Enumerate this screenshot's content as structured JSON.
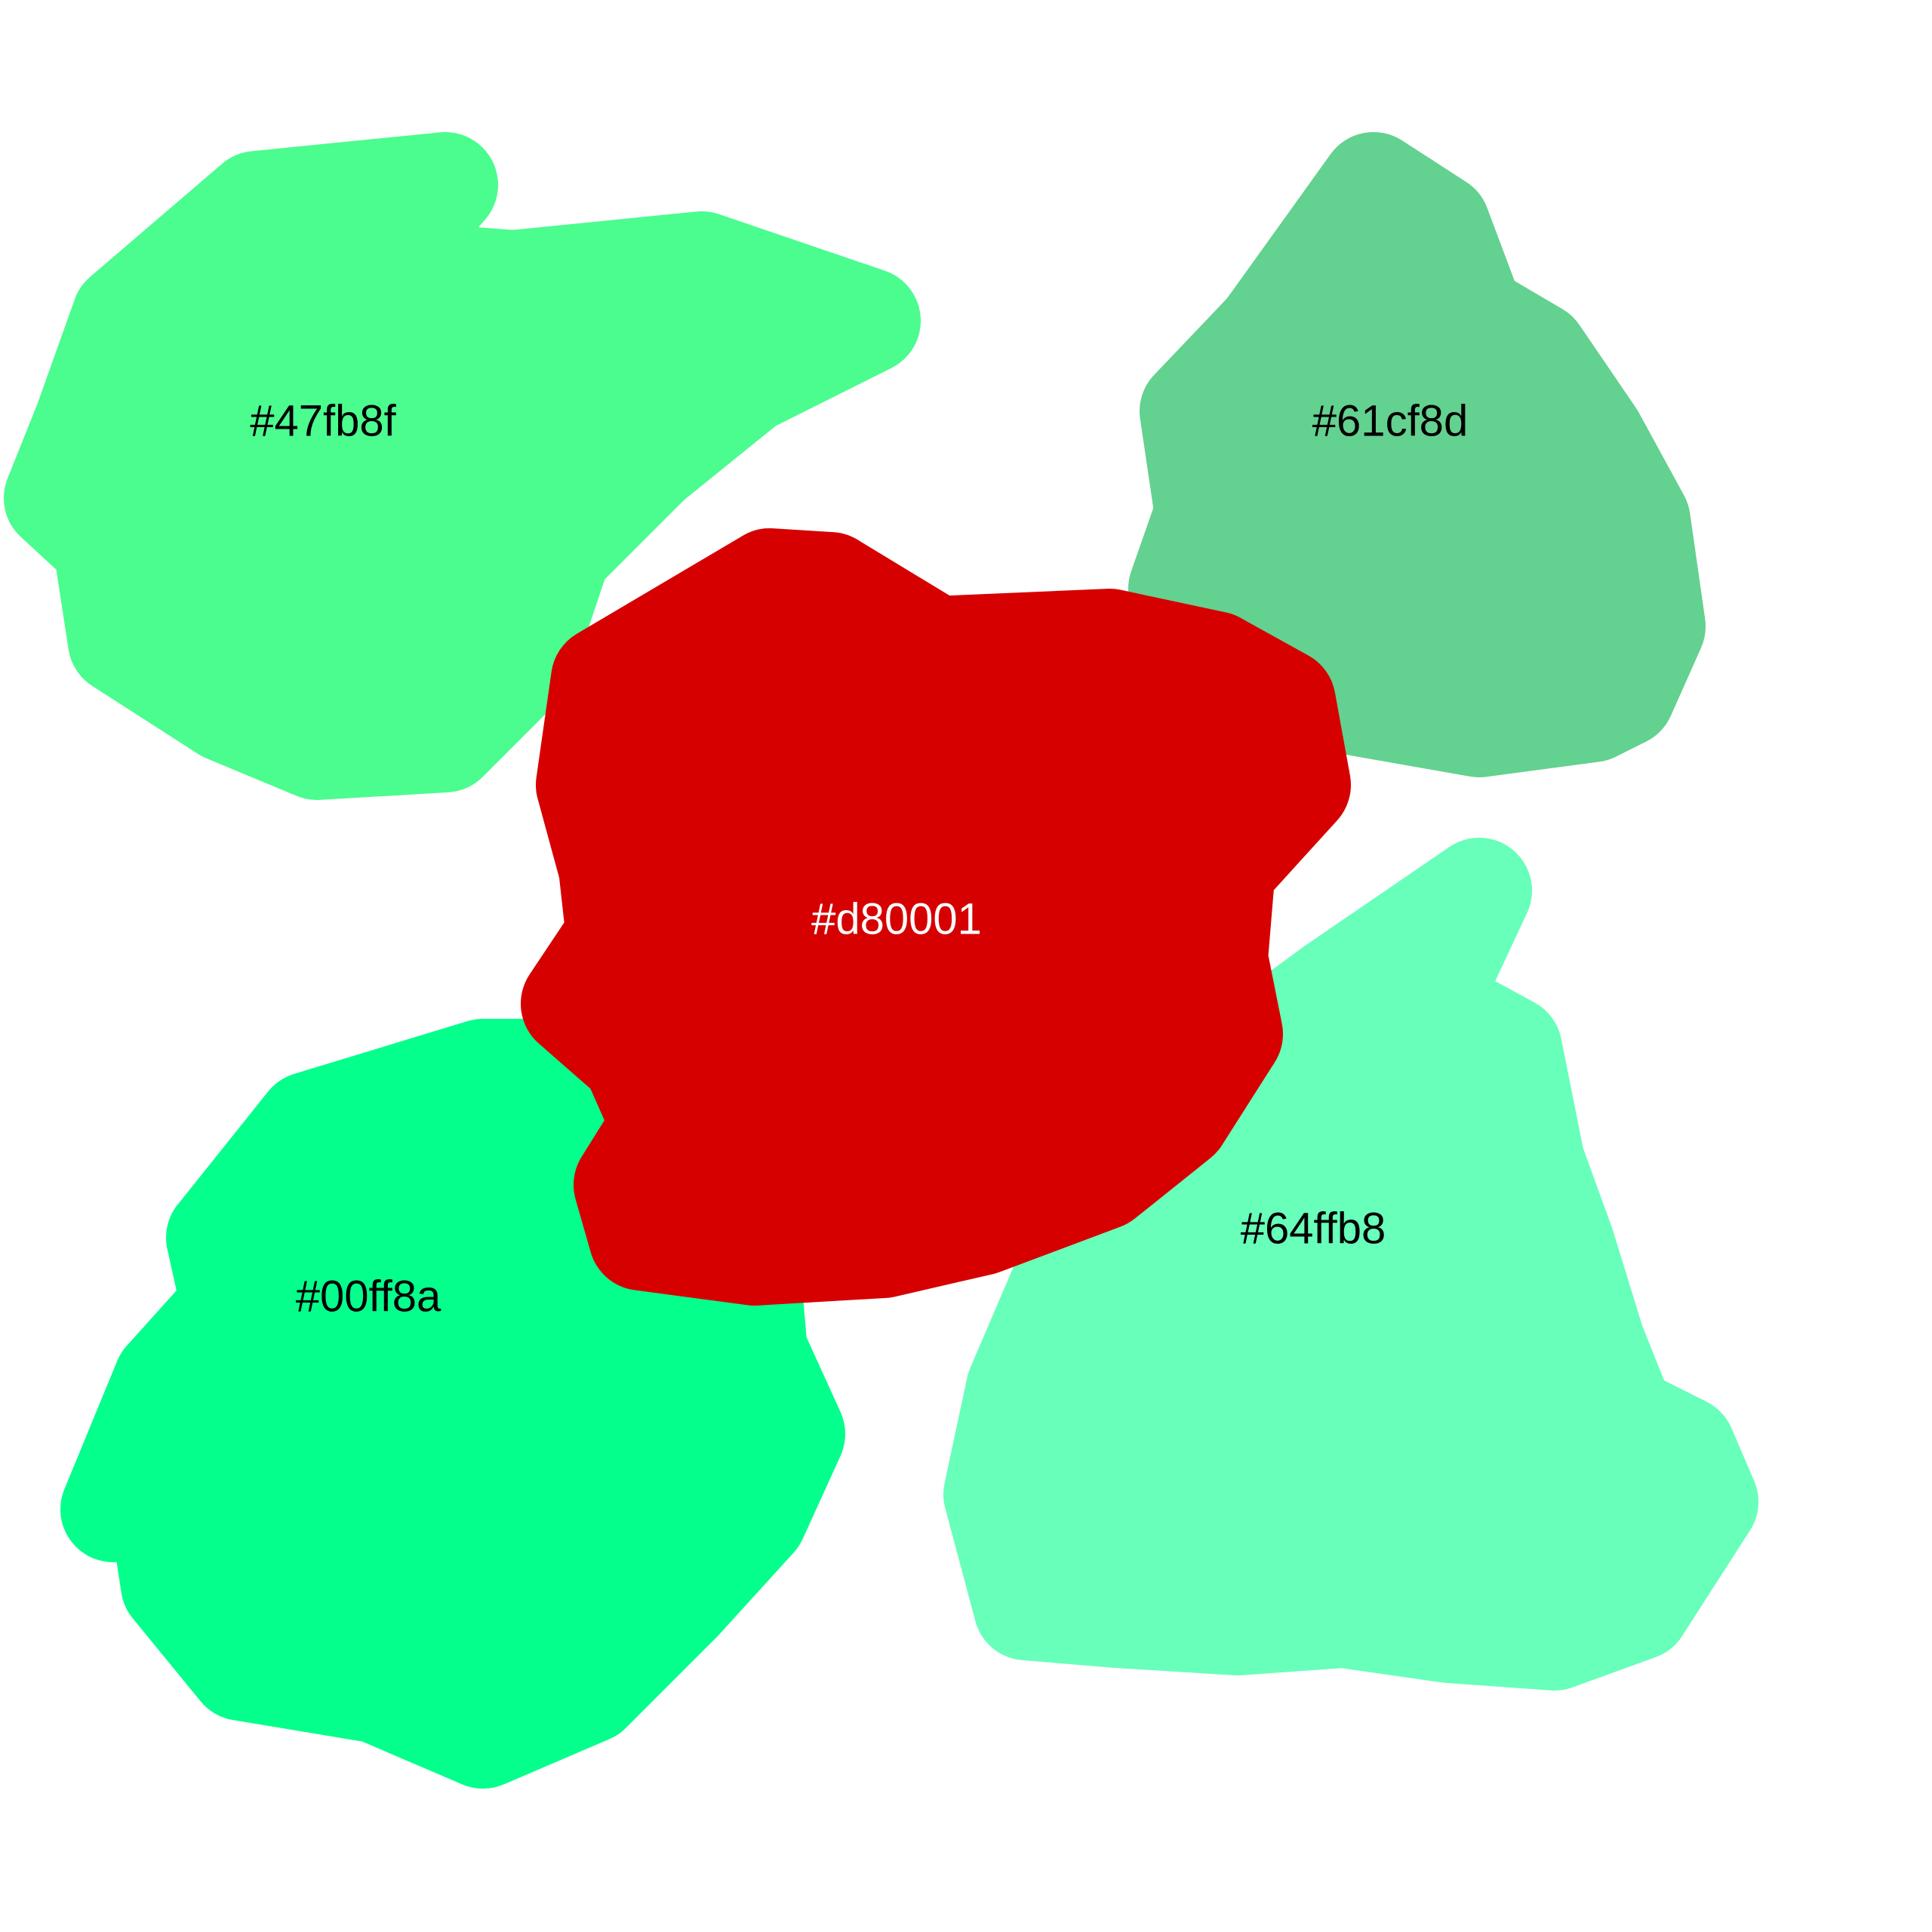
{
  "blobs": [
    {
      "id": "blob-top-left",
      "label": "#47fb8f",
      "fill": "#4bfc8f",
      "label_color": "#000000"
    },
    {
      "id": "blob-top-right",
      "label": "#61cf8d",
      "fill": "#63d18f",
      "label_color": "#000000"
    },
    {
      "id": "blob-bottom-left",
      "label": "#00ff8a",
      "fill": "#05ff8c",
      "label_color": "#000000"
    },
    {
      "id": "blob-bottom-right",
      "label": "#64ffb8",
      "fill": "#67ffba",
      "label_color": "#000000"
    },
    {
      "id": "blob-center",
      "label": "#d80001",
      "fill": "#d60000",
      "label_color": "#ffffff"
    }
  ]
}
